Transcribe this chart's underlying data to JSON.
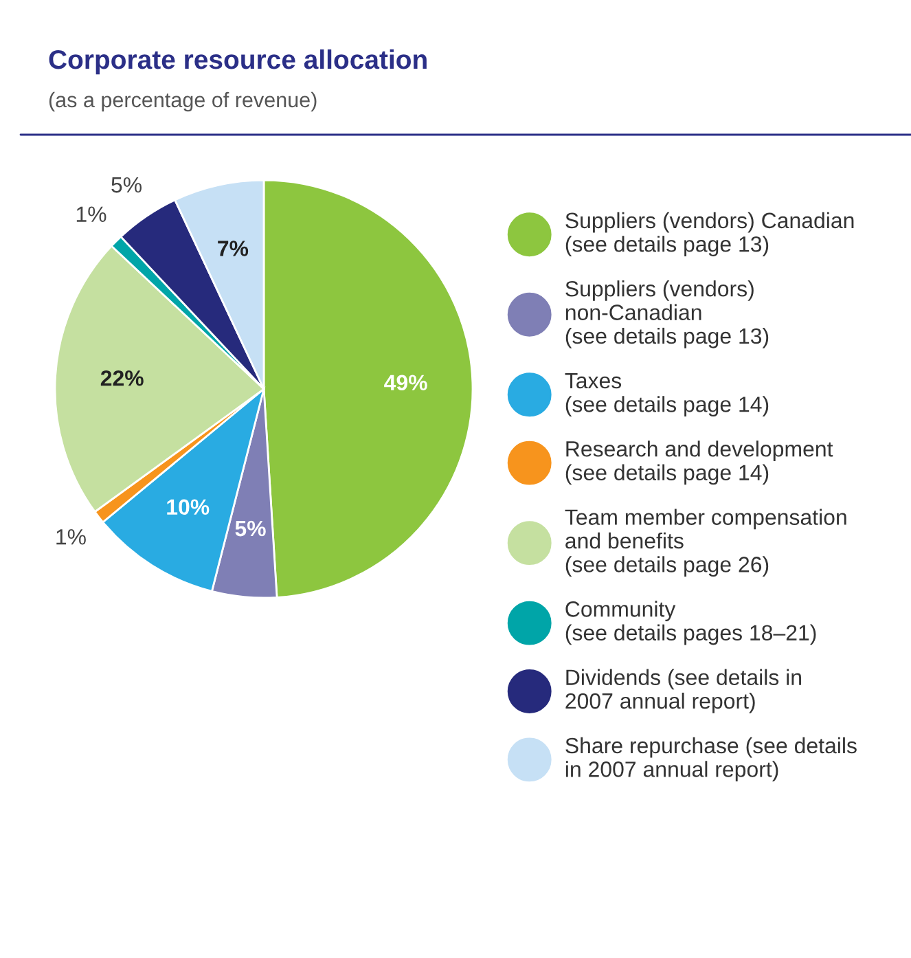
{
  "chart_data": {
    "type": "pie",
    "title": "Corporate resource allocation",
    "subtitle": "(as a percentage of revenue)",
    "categories": [
      "Suppliers (vendors) Canadian\n(see details page 13)",
      "Suppliers (vendors)\nnon-Canadian\n(see details page 13)",
      "Taxes\n(see details page 14)",
      "Research and development\n(see details page 14)",
      "Team member compensation\nand benefits\n(see details page 26)",
      "Community\n(see details pages 18–21)",
      "Dividends (see details in\n2007 annual report)",
      "Share repurchase (see details\nin 2007 annual report)"
    ],
    "values": [
      49,
      5,
      10,
      1,
      22,
      1,
      5,
      7
    ],
    "value_labels": [
      "49%",
      "5%",
      "10%",
      "1%",
      "22%",
      "1%",
      "5%",
      "7%"
    ],
    "colors": [
      "#8dc63f",
      "#7f7fb5",
      "#29abe2",
      "#f7941d",
      "#c5e0a0",
      "#00a5a8",
      "#262a7c",
      "#c6e0f5"
    ],
    "legend": "right"
  }
}
